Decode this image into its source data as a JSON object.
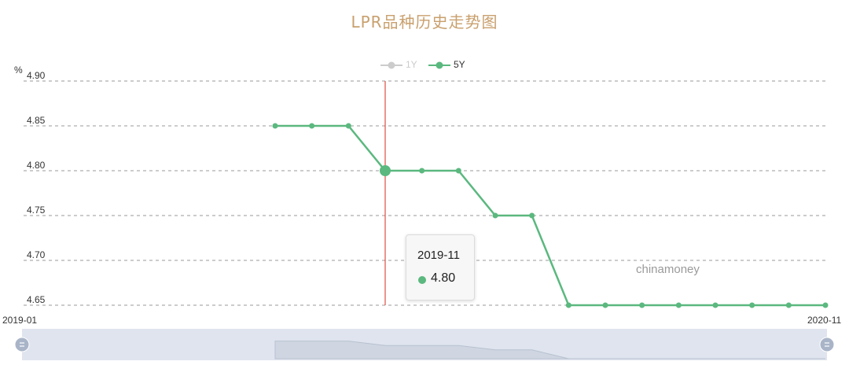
{
  "chart_data": {
    "type": "line",
    "title": "LPR品种历史走势图",
    "ylabel": "%",
    "ylim": [
      4.65,
      4.9
    ],
    "yticks": [
      "4.90",
      "4.85",
      "4.80",
      "4.75",
      "4.70",
      "4.65"
    ],
    "x_range_labels": [
      "2019-01",
      "2020-11"
    ],
    "legend_position": "top-center",
    "grid": "horizontal dashed",
    "series": [
      {
        "name": "1Y",
        "visible": false,
        "color": "#cccccc",
        "points": []
      },
      {
        "name": "5Y",
        "visible": true,
        "color": "#5bb87f",
        "points": [
          {
            "date": "2019-08",
            "value": 4.85
          },
          {
            "date": "2019-09",
            "value": 4.85
          },
          {
            "date": "2019-10",
            "value": 4.85
          },
          {
            "date": "2019-11",
            "value": 4.8
          },
          {
            "date": "2019-12",
            "value": 4.8
          },
          {
            "date": "2020-01",
            "value": 4.8
          },
          {
            "date": "2020-02",
            "value": 4.75
          },
          {
            "date": "2020-03",
            "value": 4.75
          },
          {
            "date": "2020-04",
            "value": 4.65
          },
          {
            "date": "2020-05",
            "value": 4.65
          },
          {
            "date": "2020-06",
            "value": 4.65
          },
          {
            "date": "2020-07",
            "value": 4.65
          },
          {
            "date": "2020-08",
            "value": 4.65
          },
          {
            "date": "2020-09",
            "value": 4.65
          },
          {
            "date": "2020-10",
            "value": 4.65
          },
          {
            "date": "2020-11",
            "value": 4.65
          }
        ]
      }
    ],
    "tooltip": {
      "title": "2019-11",
      "value": "4.80",
      "series": "5Y"
    },
    "annotations": [
      "chinamoney"
    ]
  },
  "colors": {
    "title": "#c9a06e",
    "line": "#5bb87f",
    "cursor": "#d9291c",
    "legend_inactive": "#cccccc",
    "grid": "#999999",
    "slider_fill": "#dfe4ee"
  }
}
